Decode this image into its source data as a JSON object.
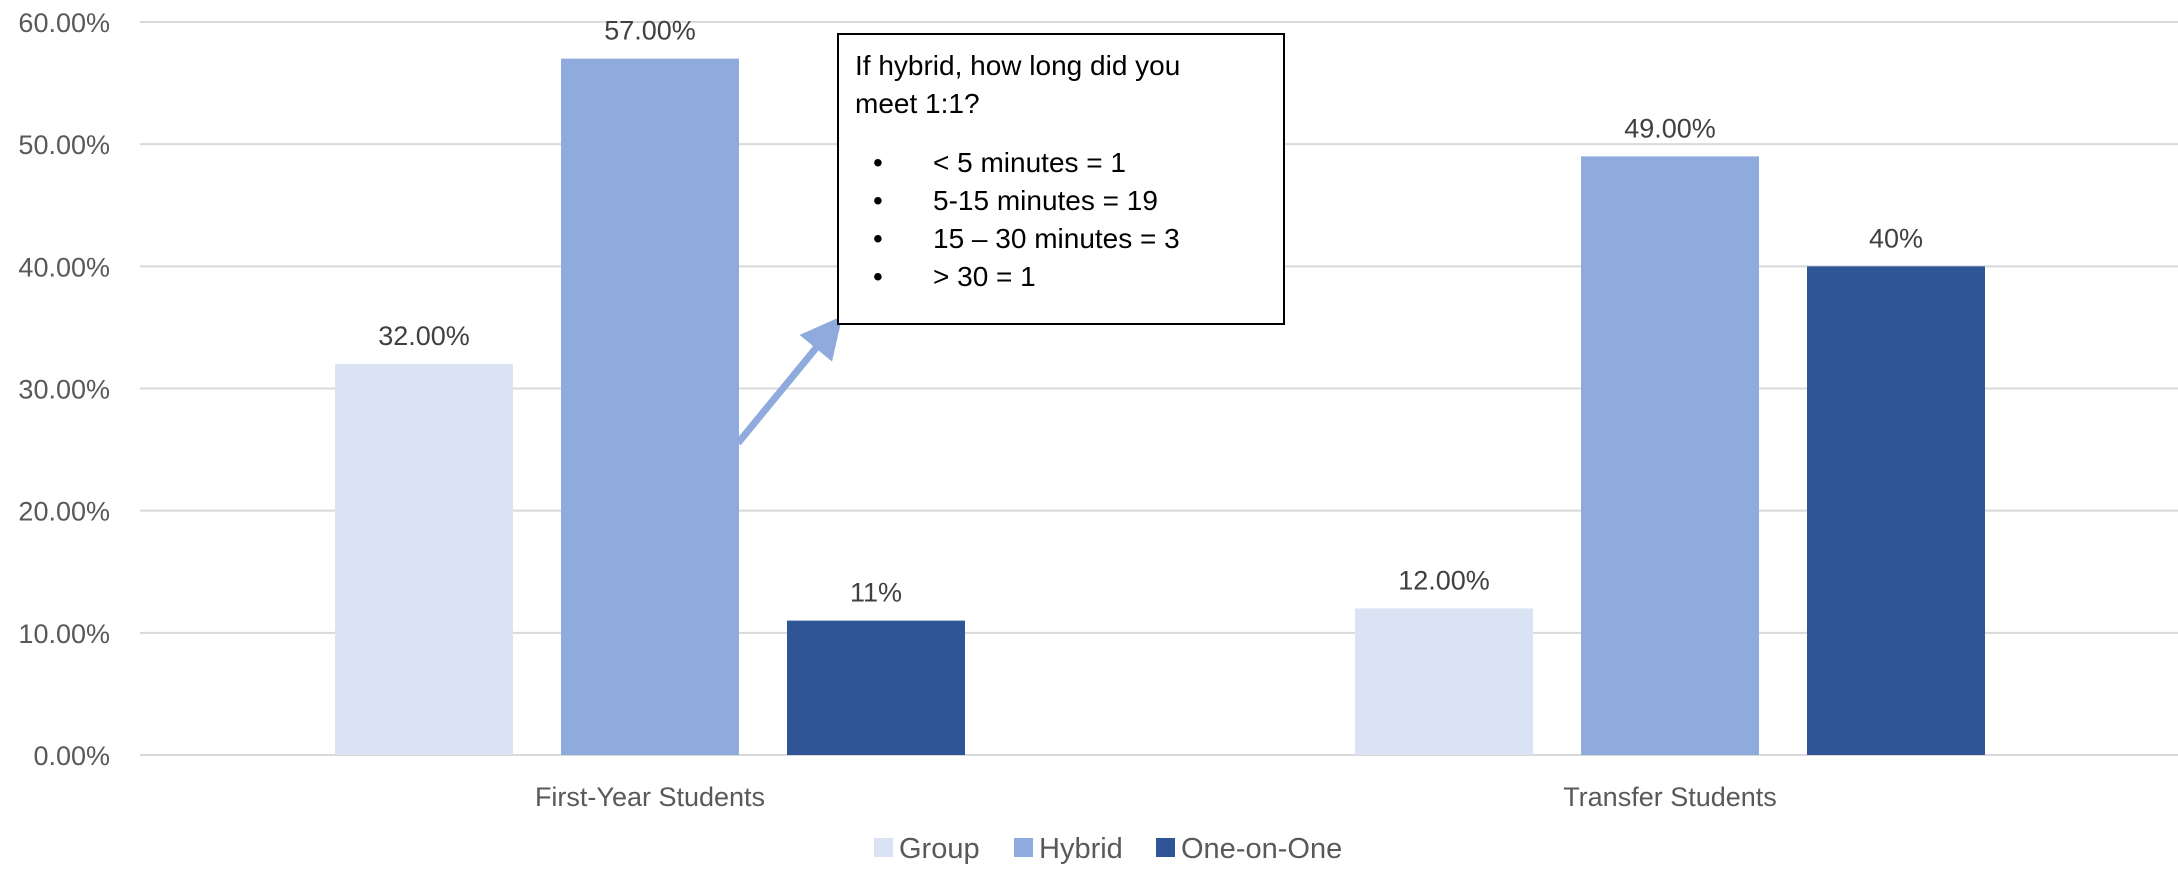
{
  "chart_data": {
    "type": "bar",
    "categories": [
      "First-Year Students",
      "Transfer Students"
    ],
    "series": [
      {
        "name": "Group",
        "values": [
          32,
          12
        ],
        "labels": [
          "32.00%",
          "12.00%"
        ],
        "color": "#DAE3F3"
      },
      {
        "name": "Hybrid",
        "values": [
          57,
          49
        ],
        "labels": [
          "57.00%",
          "49.00%"
        ],
        "color": "#8FAADC"
      },
      {
        "name": "One-on-One",
        "values": [
          11,
          40
        ],
        "labels": [
          "11%",
          "40%"
        ],
        "color": "#2F5597"
      }
    ],
    "y_ticks": [
      "0.00%",
      "10.00%",
      "20.00%",
      "30.00%",
      "40.00%",
      "50.00%",
      "60.00%"
    ],
    "ylim": [
      0,
      60
    ],
    "grid": true,
    "legend_position": "bottom",
    "colors": {
      "gridline": "#D9D9D9",
      "axis_text": "#595959",
      "arrow": "#8FAADC"
    },
    "annotation": {
      "title": "If hybrid, how long did you meet 1:1?",
      "bullet": "•",
      "items": [
        "< 5 minutes = 1",
        "5-15 minutes = 19",
        "15 – 30 minutes = 3",
        "> 30 = 1"
      ],
      "points_to": {
        "category": "First-Year Students",
        "series": "Hybrid"
      }
    }
  }
}
